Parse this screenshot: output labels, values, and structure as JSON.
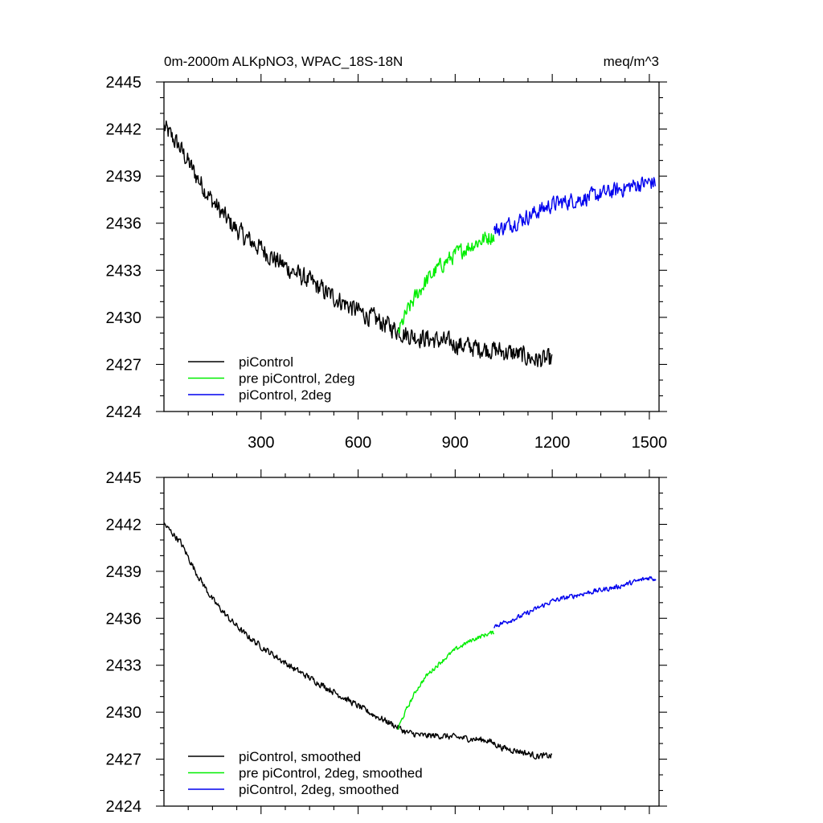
{
  "chart_data": [
    {
      "type": "line",
      "title": "0m-2000m ALKpNO3, WPAC_18S-18N",
      "units": "meq/m^3",
      "xlabel": "",
      "ylabel": "",
      "xlim": [
        0,
        1530
      ],
      "ylim": [
        2424,
        2445
      ],
      "xticks": [
        300,
        600,
        900,
        1200,
        1500
      ],
      "xtick_labels": [
        "300",
        "600",
        "900",
        "1200",
        "1500"
      ],
      "yticks": [
        2424,
        2427,
        2430,
        2433,
        2436,
        2439,
        2442,
        2445
      ],
      "ytick_labels": [
        "2424",
        "2427",
        "2430",
        "2433",
        "2436",
        "2439",
        "2442",
        "2445"
      ],
      "legend_position": "bottom-left",
      "series": [
        {
          "name": "piControl",
          "color": "#000000",
          "noise": 0.55,
          "points": [
            [
              1,
              2442.1
            ],
            [
              50,
              2440.8
            ],
            [
              100,
              2439.0
            ],
            [
              150,
              2437.4
            ],
            [
              200,
              2436.1
            ],
            [
              250,
              2435.1
            ],
            [
              300,
              2434.4
            ],
            [
              350,
              2433.6
            ],
            [
              400,
              2432.9
            ],
            [
              450,
              2432.3
            ],
            [
              500,
              2431.6
            ],
            [
              550,
              2431.0
            ],
            [
              600,
              2430.4
            ],
            [
              650,
              2429.9
            ],
            [
              700,
              2429.4
            ],
            [
              750,
              2428.9
            ],
            [
              800,
              2428.7
            ],
            [
              850,
              2428.5
            ],
            [
              900,
              2428.3
            ],
            [
              950,
              2428.1
            ],
            [
              1000,
              2428.0
            ],
            [
              1050,
              2427.8
            ],
            [
              1100,
              2427.6
            ],
            [
              1150,
              2427.3
            ],
            [
              1200,
              2427.3
            ]
          ]
        },
        {
          "name": "pre piControl, 2deg",
          "color": "#00ee00",
          "noise": 0.45,
          "points": [
            [
              722,
              2428.9
            ],
            [
              750,
              2430.3
            ],
            [
              780,
              2431.4
            ],
            [
              810,
              2432.3
            ],
            [
              850,
              2433.2
            ],
            [
              900,
              2434.0
            ],
            [
              950,
              2434.6
            ],
            [
              1000,
              2435.1
            ],
            [
              1020,
              2435.2
            ]
          ]
        },
        {
          "name": "piControl, 2deg",
          "color": "#0000ee",
          "noise": 0.45,
          "points": [
            [
              1020,
              2435.5
            ],
            [
              1100,
              2436.2
            ],
            [
              1150,
              2436.7
            ],
            [
              1200,
              2437.2
            ],
            [
              1300,
              2437.6
            ],
            [
              1400,
              2438.1
            ],
            [
              1450,
              2438.4
            ],
            [
              1500,
              2438.6
            ],
            [
              1520,
              2438.6
            ]
          ]
        }
      ]
    },
    {
      "type": "line",
      "title": "",
      "xlabel": "",
      "ylabel": "",
      "xlim": [
        0,
        1530
      ],
      "ylim": [
        2424,
        2445
      ],
      "xticks": [
        300,
        600,
        900,
        1200,
        1500
      ],
      "yticks": [
        2424,
        2427,
        2430,
        2433,
        2436,
        2439,
        2442,
        2445
      ],
      "ytick_labels": [
        "2424",
        "2427",
        "2430",
        "2433",
        "2436",
        "2439",
        "2442",
        "2445"
      ],
      "legend_position": "bottom-left",
      "series": [
        {
          "name": "piControl, smoothed",
          "color": "#000000",
          "noise": 0.18,
          "points": [
            [
              1,
              2442.0
            ],
            [
              50,
              2440.9
            ],
            [
              100,
              2438.9
            ],
            [
              150,
              2437.2
            ],
            [
              200,
              2436.0
            ],
            [
              250,
              2435.0
            ],
            [
              300,
              2434.2
            ],
            [
              350,
              2433.5
            ],
            [
              400,
              2432.8
            ],
            [
              450,
              2432.2
            ],
            [
              500,
              2431.6
            ],
            [
              550,
              2431.0
            ],
            [
              600,
              2430.4
            ],
            [
              650,
              2429.8
            ],
            [
              700,
              2429.3
            ],
            [
              750,
              2428.7
            ],
            [
              800,
              2428.5
            ],
            [
              850,
              2428.5
            ],
            [
              900,
              2428.4
            ],
            [
              950,
              2428.3
            ],
            [
              1000,
              2428.2
            ],
            [
              1050,
              2427.7
            ],
            [
              1100,
              2427.5
            ],
            [
              1150,
              2427.2
            ],
            [
              1200,
              2427.2
            ]
          ]
        },
        {
          "name": "pre piControl, 2deg, smoothed",
          "color": "#00ee00",
          "noise": 0.12,
          "points": [
            [
              722,
              2428.9
            ],
            [
              750,
              2430.2
            ],
            [
              780,
              2431.4
            ],
            [
              810,
              2432.3
            ],
            [
              850,
              2433.1
            ],
            [
              900,
              2434.0
            ],
            [
              950,
              2434.6
            ],
            [
              1000,
              2435.0
            ],
            [
              1020,
              2435.1
            ]
          ]
        },
        {
          "name": "piControl, 2deg, smoothed",
          "color": "#0000ee",
          "noise": 0.14,
          "points": [
            [
              1020,
              2435.5
            ],
            [
              1100,
              2436.1
            ],
            [
              1150,
              2436.6
            ],
            [
              1200,
              2437.1
            ],
            [
              1300,
              2437.6
            ],
            [
              1400,
              2438.0
            ],
            [
              1450,
              2438.3
            ],
            [
              1500,
              2438.6
            ],
            [
              1520,
              2438.5
            ]
          ]
        }
      ]
    }
  ]
}
